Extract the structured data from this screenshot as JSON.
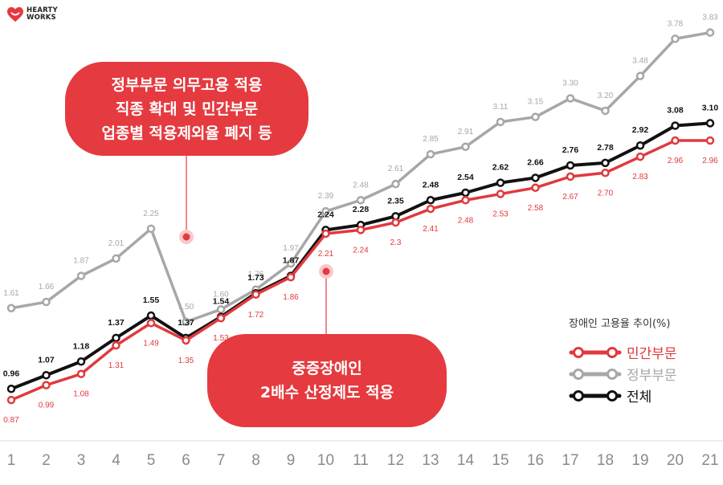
{
  "logo": {
    "line1": "HEARTY",
    "line2": "WORKS"
  },
  "annotations": [
    "정부부문 의무고용 적용\n직종 확대 및 민간부문\n업종별 적용제외율 폐지 등",
    "중증장애인\n2배수 산정제도 적용"
  ],
  "legend": {
    "title": "장애인 고용율 추이(%)",
    "items": [
      "민간부문",
      "정부부문",
      "전체"
    ]
  },
  "colors": {
    "private": "#e03a3e",
    "government": "#a7a7a7",
    "total": "#111111",
    "bubble": "#e53a3f",
    "axis_text": "#8a8a8a",
    "baseline": "#dcdcdc"
  },
  "chart_data": {
    "type": "line",
    "x": [
      1,
      2,
      3,
      4,
      5,
      6,
      7,
      8,
      9,
      10,
      11,
      12,
      13,
      14,
      15,
      16,
      17,
      18,
      19,
      20,
      21
    ],
    "x_labels": [
      "1",
      "2",
      "3",
      "4",
      "5",
      "6",
      "7",
      "8",
      "9",
      "10",
      "11",
      "12",
      "13",
      "14",
      "15",
      "16",
      "17",
      "18",
      "19",
      "20",
      "21"
    ],
    "ylim": [
      0.8,
      3.95
    ],
    "grid": false,
    "legend_position": "bottom-right",
    "series": [
      {
        "name": "정부부문",
        "key": "government",
        "values": [
          1.61,
          1.66,
          1.87,
          2.01,
          2.25,
          1.5,
          1.6,
          1.76,
          1.97,
          2.39,
          2.48,
          2.61,
          2.85,
          2.91,
          3.11,
          3.15,
          3.3,
          3.2,
          3.48,
          3.78,
          3.83
        ],
        "labels": [
          "1.61",
          "1.66",
          "1.87",
          "2.01",
          "2.25",
          "1.50",
          "1.60",
          "1.76",
          "1.97",
          "2.39",
          "2.48",
          "2.61",
          "2.85",
          "2.91",
          "3.11",
          "3.15",
          "3.30",
          "3.20",
          "3.48",
          "3.78",
          "3.83"
        ]
      },
      {
        "name": "전체",
        "key": "total",
        "values": [
          0.96,
          1.07,
          1.18,
          1.37,
          1.55,
          1.37,
          1.54,
          1.73,
          1.87,
          2.24,
          2.28,
          2.35,
          2.48,
          2.54,
          2.62,
          2.66,
          2.76,
          2.78,
          2.92,
          3.08,
          3.1
        ],
        "labels": [
          "0.96",
          "1.07",
          "1.18",
          "1.37",
          "1.55",
          "1.37",
          "1.54",
          "1.73",
          "1.87",
          "2.24",
          "2.28",
          "2.35",
          "2.48",
          "2.54",
          "2.62",
          "2.66",
          "2.76",
          "2.78",
          "2.92",
          "3.08",
          "3.10"
        ]
      },
      {
        "name": "민간부문",
        "key": "private",
        "values": [
          0.87,
          0.99,
          1.08,
          1.31,
          1.49,
          1.35,
          1.53,
          1.72,
          1.86,
          2.21,
          2.24,
          2.3,
          2.41,
          2.48,
          2.53,
          2.58,
          2.67,
          2.7,
          2.83,
          2.96,
          2.96
        ],
        "labels": [
          "0.87",
          "0.99",
          "1.08",
          "1.31",
          "1.49",
          "1.35",
          "1.53",
          "1.72",
          "1.86",
          "2.21",
          "2.24",
          "2.3",
          "2.41",
          "2.48",
          "2.53",
          "2.58",
          "2.67",
          "2.70",
          "2.83",
          "2.96",
          "2.96"
        ]
      }
    ]
  }
}
